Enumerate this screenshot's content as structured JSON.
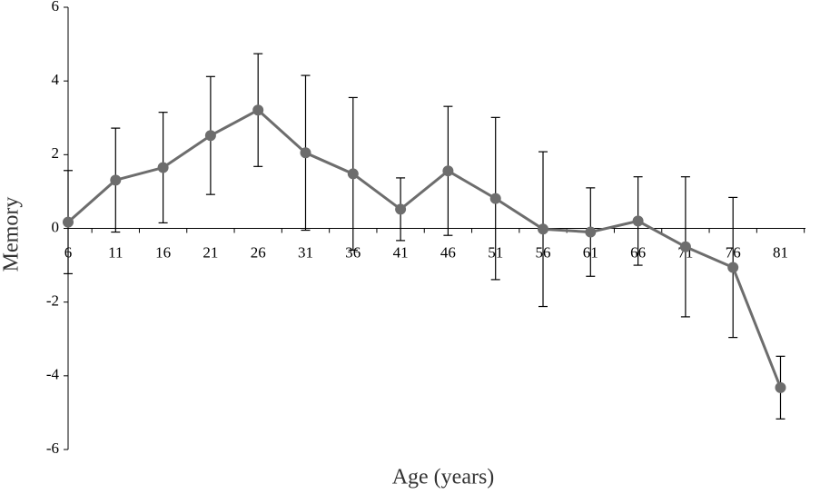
{
  "chart_data": {
    "type": "line",
    "x_label": "Age (years)",
    "y_label": "Memory",
    "categories": [
      "6",
      "11",
      "16",
      "21",
      "26",
      "31",
      "36",
      "41",
      "46",
      "51",
      "56",
      "61",
      "66",
      "71",
      "76",
      "81"
    ],
    "series": [
      {
        "name": "Memory",
        "color": "#6d6d6d",
        "values": [
          0.17,
          1.31,
          1.65,
          2.52,
          3.21,
          2.05,
          1.48,
          0.52,
          1.56,
          0.81,
          -0.02,
          -0.1,
          0.2,
          -0.5,
          -1.06,
          -4.32
        ],
        "errors": [
          1.4,
          1.41,
          1.5,
          1.6,
          1.53,
          2.1,
          2.07,
          0.85,
          1.75,
          2.2,
          2.1,
          1.2,
          1.2,
          1.9,
          1.9,
          0.85
        ]
      }
    ],
    "ylim": [
      -6,
      6
    ],
    "yticks": [
      -6,
      -4,
      -2,
      0,
      2,
      4,
      6
    ]
  }
}
